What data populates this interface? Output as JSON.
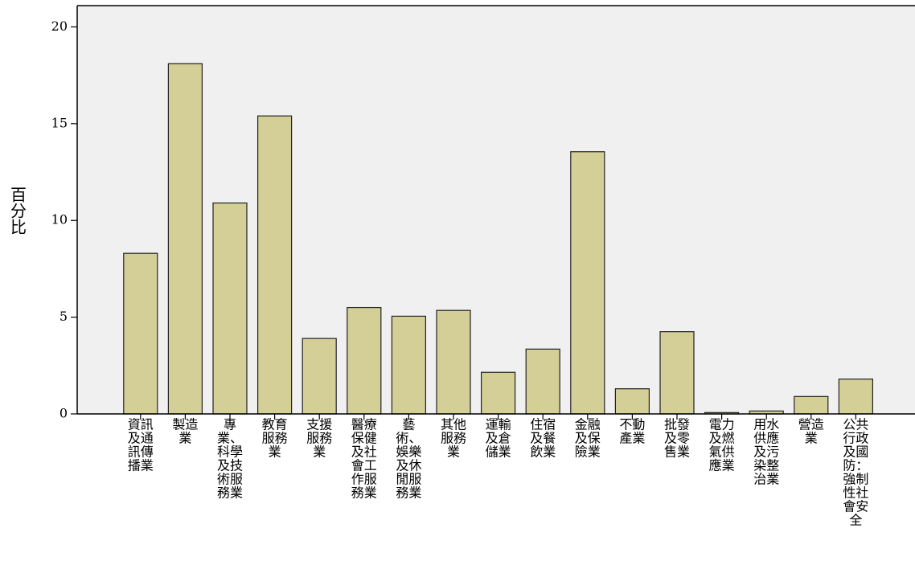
{
  "chart_data": {
    "type": "bar",
    "y_label": "百分比",
    "categories": [
      [
        "資訊",
        "及通",
        "訊傳",
        "播業"
      ],
      [
        "製造",
        "業"
      ],
      [
        "專",
        "業、",
        "科學",
        "及技",
        "術服",
        "務業"
      ],
      [
        "教育",
        "服務",
        "業"
      ],
      [
        "支援",
        "服務",
        "業"
      ],
      [
        "醫療",
        "保健",
        "及社",
        "會工",
        "作服",
        "務業"
      ],
      [
        "藝",
        "術、",
        "娛樂",
        "及休",
        "閒服",
        "務業"
      ],
      [
        "其他",
        "服務",
        "業"
      ],
      [
        "運輸",
        "及倉",
        "儲業"
      ],
      [
        "住宿",
        "及餐",
        "飲業"
      ],
      [
        "金融",
        "及保",
        "險業"
      ],
      [
        "不動",
        "產業"
      ],
      [
        "批發",
        "及零",
        "售業"
      ],
      [
        "電力",
        "及燃",
        "氣供",
        "應業"
      ],
      [
        "用水",
        "供應",
        "及污",
        "染整",
        "治業"
      ],
      [
        "營造",
        "業"
      ],
      [
        "公共",
        "行政",
        "及國",
        "防：",
        "強制",
        "性社",
        "會安",
        "全"
      ]
    ],
    "values": [
      8.3,
      18.1,
      10.9,
      15.4,
      3.9,
      5.5,
      5.05,
      5.35,
      2.15,
      3.35,
      13.55,
      1.3,
      4.25,
      0.07,
      0.15,
      0.9,
      1.8
    ],
    "color": "#d3cf97",
    "ylim": [
      0,
      21.1
    ],
    "yticks": [
      0,
      5,
      10,
      15,
      20
    ]
  }
}
